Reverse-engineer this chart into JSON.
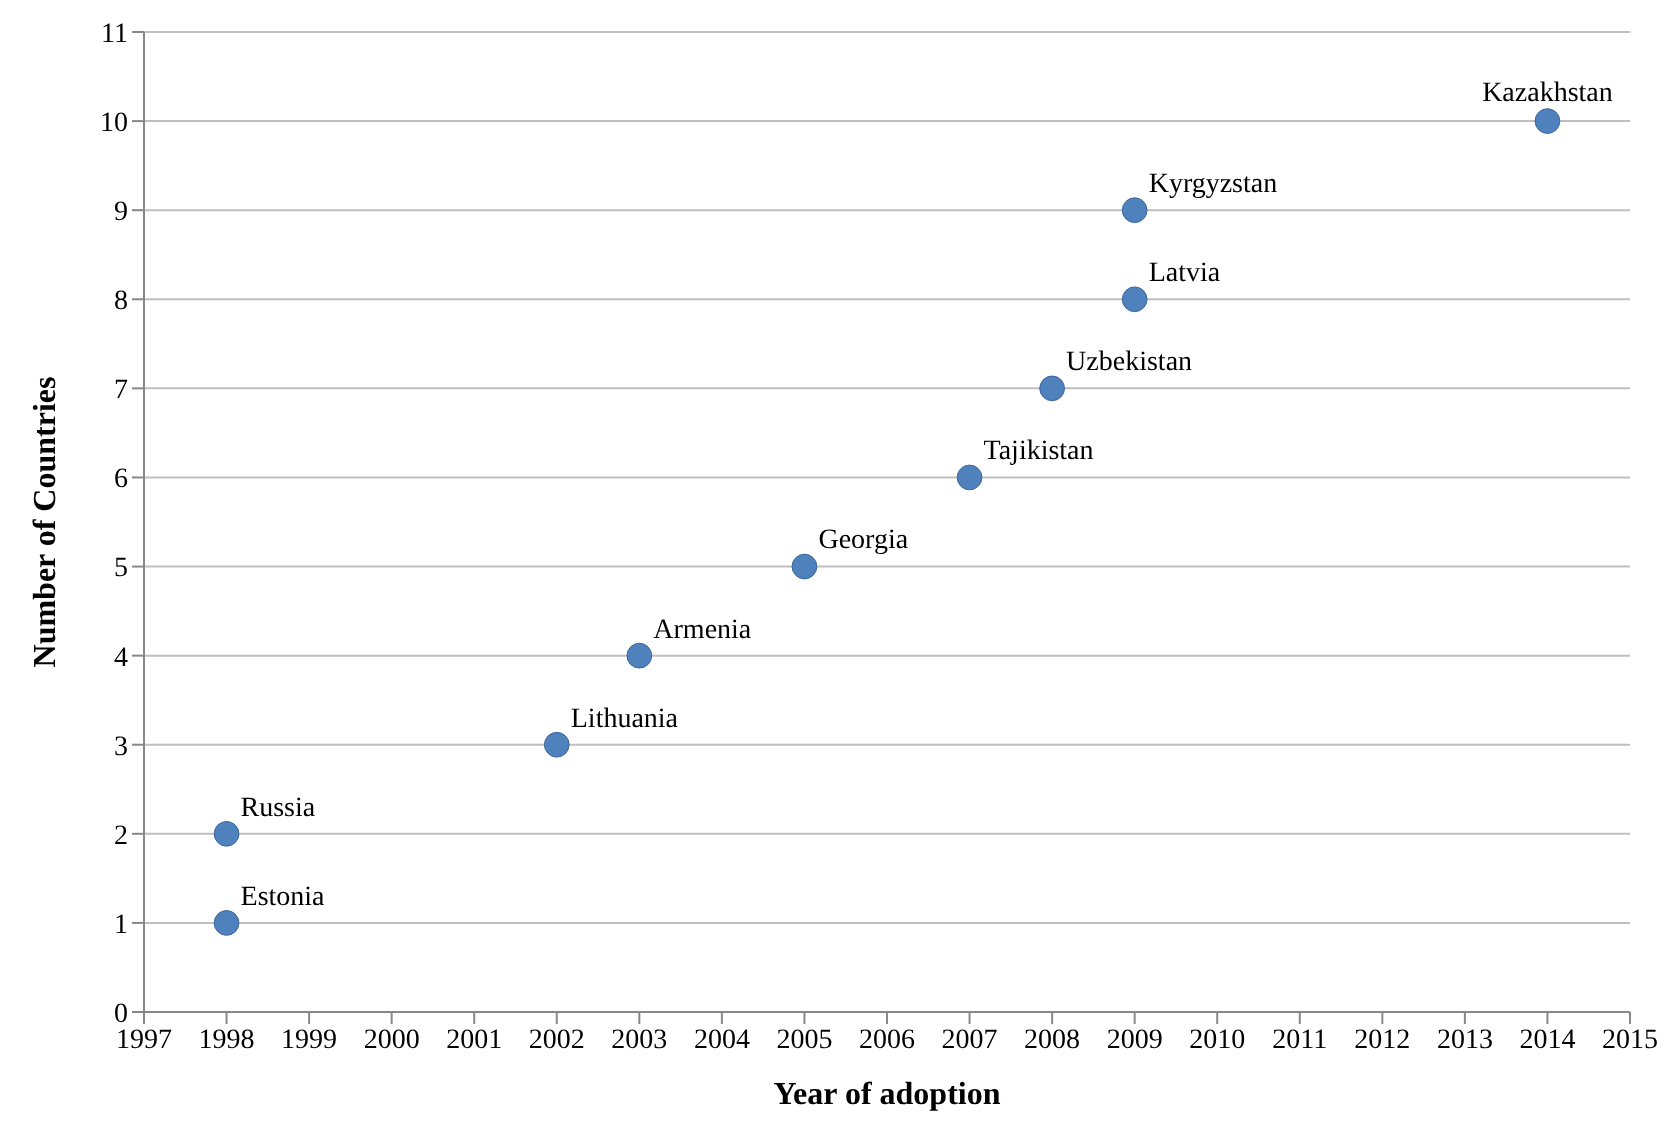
{
  "chart_data": {
    "type": "scatter",
    "xlabel": "Year of adoption",
    "ylabel": "Number of Countries",
    "x": [
      1998,
      1998,
      2002,
      2003,
      2005,
      2007,
      2008,
      2009,
      2009,
      2014
    ],
    "values": [
      1,
      2,
      3,
      4,
      5,
      6,
      7,
      8,
      9,
      10
    ],
    "color": "#4f81bd",
    "marker": "circle",
    "grid": "y",
    "xlim": [
      1997,
      2015
    ],
    "xticks": [
      1997,
      1998,
      1999,
      2000,
      2001,
      2002,
      2003,
      2004,
      2005,
      2006,
      2007,
      2008,
      2009,
      2010,
      2011,
      2012,
      2013,
      2014,
      2015
    ],
    "ylim": [
      0,
      11
    ],
    "yticks": [
      0,
      1,
      2,
      3,
      4,
      5,
      6,
      7,
      8,
      9,
      10,
      11
    ],
    "annotations": [
      {
        "text": "Estonia",
        "x": 1998,
        "y": 1
      },
      {
        "text": "Russia",
        "x": 1998,
        "y": 2
      },
      {
        "text": "Lithuania",
        "x": 2002,
        "y": 3
      },
      {
        "text": "Armenia",
        "x": 2003,
        "y": 4
      },
      {
        "text": "Georgia",
        "x": 2005,
        "y": 5
      },
      {
        "text": "Tajikistan",
        "x": 2007,
        "y": 6
      },
      {
        "text": "Uzbekistan",
        "x": 2008,
        "y": 7
      },
      {
        "text": "Latvia",
        "x": 2009,
        "y": 8
      },
      {
        "text": "Kyrgyzstan",
        "x": 2009,
        "y": 9
      },
      {
        "text": "Kazakhstan",
        "x": 2014,
        "y": 10
      }
    ]
  }
}
